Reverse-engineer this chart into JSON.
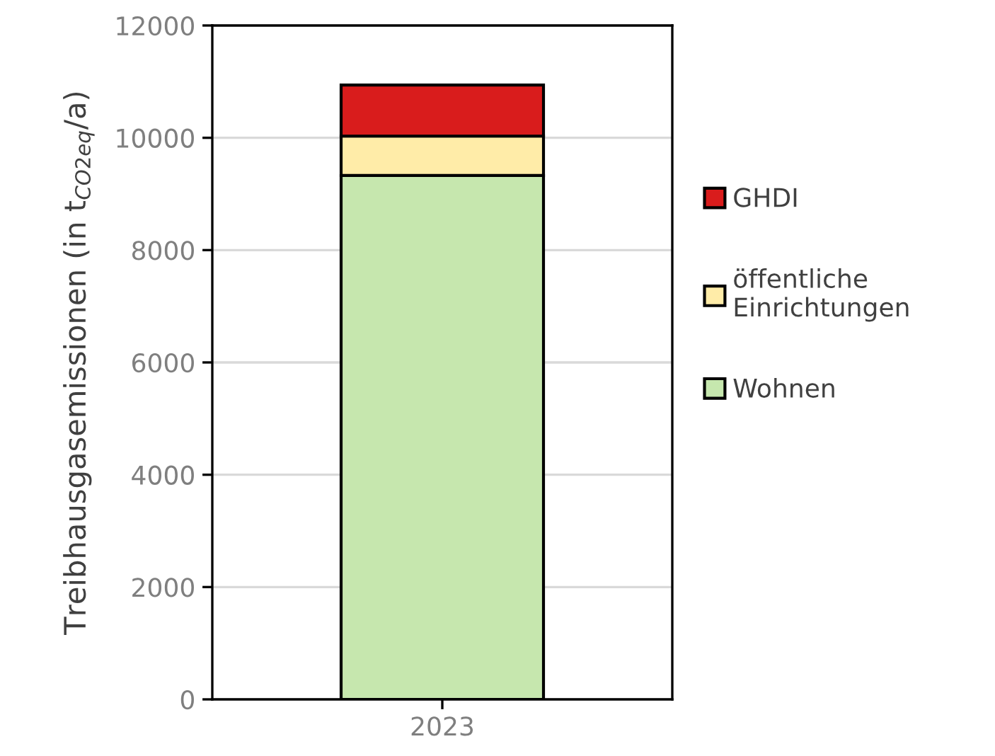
{
  "chart_data": {
    "type": "bar",
    "stacked": true,
    "categories": [
      "2023"
    ],
    "ylabel": "Treibhausgasemissionen (in t$_{CO2eq}$/a)",
    "series": [
      {
        "name": "Wohnen",
        "color": "#c6e7ae",
        "values": [
          9330
        ]
      },
      {
        "name": "öffentliche\nEinrichtungen",
        "color": "#ffeca8",
        "values": [
          700
        ]
      },
      {
        "name": "GHDI",
        "color": "#d91c1c",
        "values": [
          910
        ]
      }
    ],
    "ylim": [
      0,
      12000
    ],
    "yticks": [
      0,
      2000,
      4000,
      6000,
      8000,
      10000,
      12000
    ],
    "grid": "y",
    "legend": "right"
  }
}
